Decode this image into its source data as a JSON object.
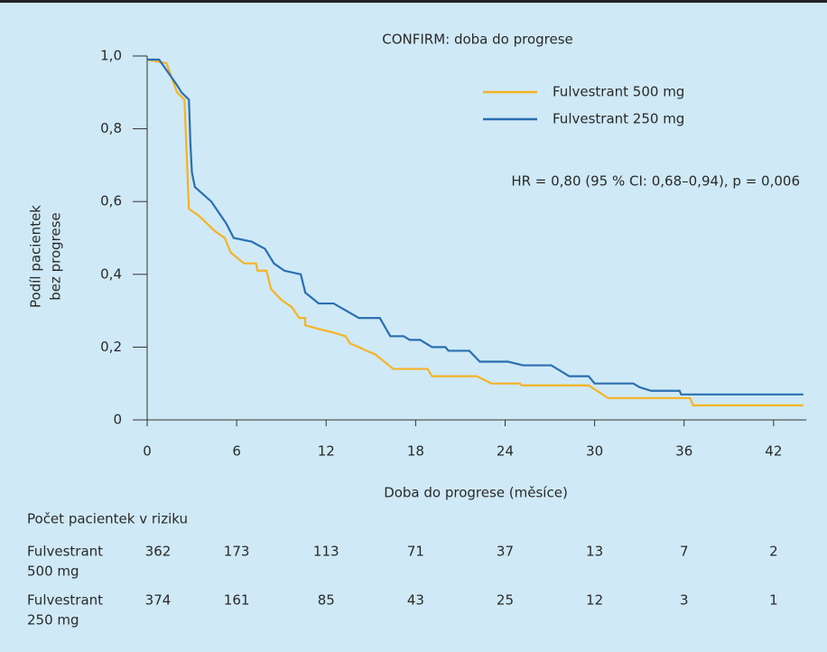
{
  "chart_data": {
    "type": "line",
    "title": "CONFIRM: doba do progrese",
    "xlabel": "Doba do progrese (měsíce)",
    "ylabel": [
      "Podíl pacientek",
      "bez progrese"
    ],
    "annotation": "HR = 0,80 (95 % CI: 0,68–0,94), p = 0,006",
    "xlim": [
      0,
      44.2
    ],
    "ylim": [
      0,
      1
    ],
    "xticks": [
      0,
      6,
      12,
      18,
      24,
      30,
      36,
      42
    ],
    "yticks": [
      0,
      {
        "value": 0.2,
        "label": "0,2"
      },
      {
        "value": 0.4,
        "label": "0,4"
      },
      {
        "value": 0.6,
        "label": "0,6"
      },
      {
        "value": 0.8,
        "label": "0,8"
      },
      {
        "value": 1,
        "label": "1,0"
      }
    ],
    "series": [
      {
        "name": "Fulvestrant 500 mg",
        "color": "#f5b325",
        "x": [
          0,
          1.3,
          2,
          2.5,
          2.8,
          3.5,
          4.5,
          5.2,
          5.6,
          6.5,
          7.3,
          7.4,
          8,
          8.3,
          9,
          9.7,
          10.2,
          10.6,
          10.6,
          11.5,
          12.5,
          13.3,
          13.6,
          14.2,
          14.7,
          15.3,
          16.5,
          18.8,
          19.1,
          22.1,
          23.1,
          25,
          25.1,
          29.6,
          30.9,
          36.4,
          36.6,
          44
        ],
        "values": [
          0.99,
          0.98,
          0.9,
          0.88,
          0.58,
          0.56,
          0.52,
          0.5,
          0.46,
          0.43,
          0.43,
          0.41,
          0.41,
          0.36,
          0.33,
          0.31,
          0.28,
          0.28,
          0.26,
          0.25,
          0.24,
          0.23,
          0.21,
          0.2,
          0.19,
          0.18,
          0.14,
          0.14,
          0.12,
          0.12,
          0.1,
          0.1,
          0.095,
          0.095,
          0.06,
          0.06,
          0.04,
          0.04
        ]
      },
      {
        "name": "Fulvestrant 250 mg",
        "color": "#2b6fb1",
        "x": [
          0,
          0.8,
          2,
          2.3,
          2.8,
          2.9,
          3,
          3.2,
          4.3,
          5.3,
          5.8,
          7,
          7.9,
          8.5,
          9.2,
          10.3,
          10.6,
          11.5,
          12.5,
          14.2,
          15.6,
          16.3,
          17.2,
          17.6,
          18.3,
          19.1,
          20,
          20.2,
          21.6,
          22.3,
          24.2,
          25.2,
          27.1,
          28.3,
          29.6,
          30,
          32.6,
          33,
          33.8,
          35.7,
          35.8,
          44
        ],
        "values": [
          0.99,
          0.99,
          0.92,
          0.9,
          0.88,
          0.76,
          0.68,
          0.64,
          0.6,
          0.54,
          0.5,
          0.49,
          0.47,
          0.43,
          0.41,
          0.4,
          0.35,
          0.32,
          0.32,
          0.28,
          0.28,
          0.23,
          0.23,
          0.22,
          0.22,
          0.2,
          0.2,
          0.19,
          0.19,
          0.16,
          0.16,
          0.15,
          0.15,
          0.12,
          0.12,
          0.1,
          0.1,
          0.09,
          0.08,
          0.08,
          0.07,
          0.07
        ]
      }
    ],
    "risk_table": {
      "title": "Počet pacientek v riziku",
      "rows": [
        {
          "label": [
            "Fulvestrant",
            "500 mg"
          ],
          "values": [
            362,
            173,
            113,
            71,
            37,
            13,
            7,
            2
          ]
        },
        {
          "label": [
            "Fulvestrant",
            "250 mg"
          ],
          "values": [
            374,
            161,
            85,
            43,
            25,
            12,
            3,
            1
          ]
        }
      ]
    }
  }
}
